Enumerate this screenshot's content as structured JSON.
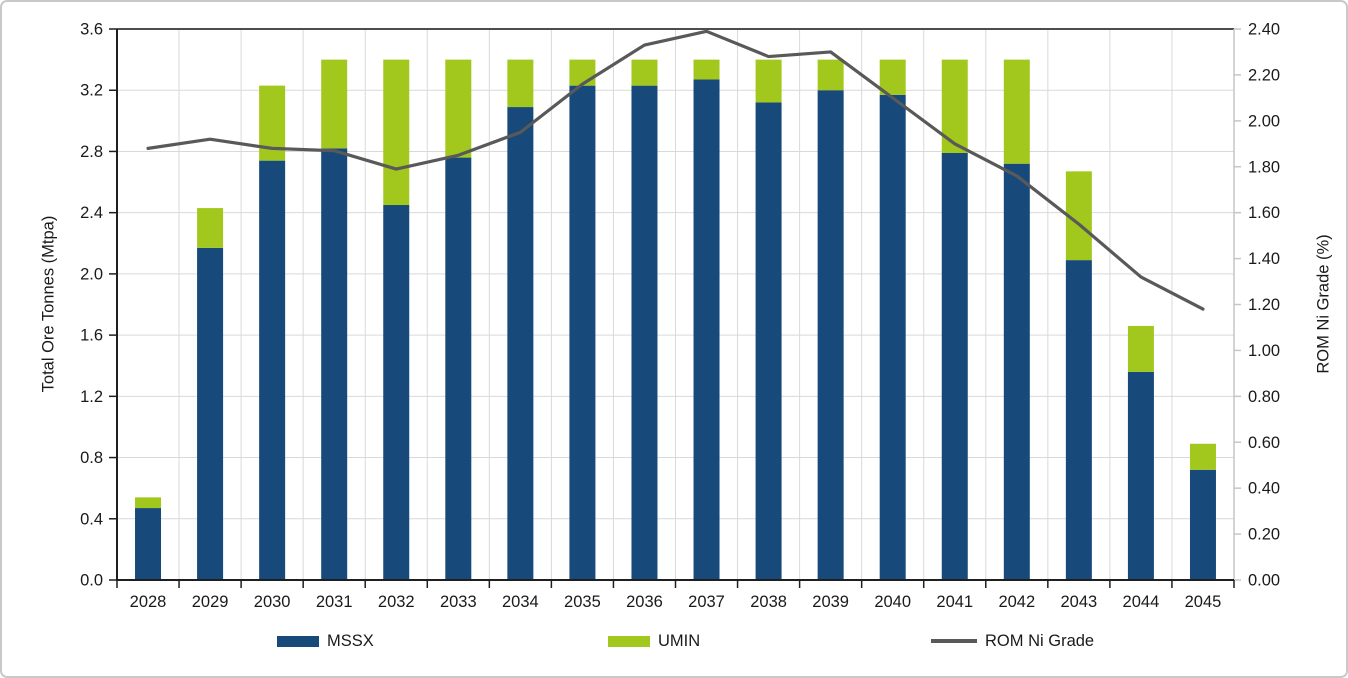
{
  "figure": {
    "background": "#FFFFFF",
    "border_color": "#C9C9C9"
  },
  "colors": {
    "mssx_blue": "#17497B",
    "umin_green": "#A2C81E",
    "line_gray": "#595959",
    "gridline": "#D9D9D9",
    "axis_dark": "#1F1F1F",
    "axis_light": "#C6C6C6",
    "plot_top_border": "#4D4D4D",
    "text": "#1A1A1A"
  },
  "chart_data": {
    "type": "combo-stacked-bar-line",
    "title": "",
    "categories": [
      "2028",
      "2029",
      "2030",
      "2031",
      "2032",
      "2033",
      "2034",
      "2035",
      "2036",
      "2037",
      "2038",
      "2039",
      "2040",
      "2041",
      "2042",
      "2043",
      "2044",
      "2045"
    ],
    "series": [
      {
        "name": "MSSX",
        "type": "bar",
        "stack": "ore",
        "axis": "left",
        "color": "#17497B",
        "values": [
          0.47,
          2.17,
          2.74,
          2.82,
          2.45,
          2.76,
          3.09,
          3.23,
          3.23,
          3.27,
          3.12,
          3.2,
          3.17,
          2.79,
          2.72,
          2.09,
          1.36,
          0.72
        ]
      },
      {
        "name": "UMIN",
        "type": "bar",
        "stack": "ore",
        "axis": "left",
        "color": "#A2C81E",
        "values": [
          0.07,
          0.26,
          0.49,
          0.58,
          0.95,
          0.64,
          0.31,
          0.17,
          0.17,
          0.13,
          0.28,
          0.2,
          0.23,
          0.61,
          0.68,
          0.58,
          0.3,
          0.17
        ]
      },
      {
        "name": "ROM Ni Grade",
        "type": "line",
        "axis": "right",
        "color": "#595959",
        "values": [
          1.88,
          1.92,
          1.88,
          1.87,
          1.79,
          1.85,
          1.95,
          2.16,
          2.33,
          2.39,
          2.28,
          2.3,
          2.1,
          1.9,
          1.76,
          1.55,
          1.32,
          1.18
        ]
      }
    ],
    "stacked_totals": [
      0.54,
      2.43,
      3.23,
      3.4,
      3.4,
      3.4,
      3.4,
      3.4,
      3.4,
      3.4,
      3.4,
      3.4,
      3.4,
      3.4,
      3.4,
      2.67,
      1.66,
      0.89
    ],
    "left_axis": {
      "label": "Total Ore Tonnes (Mtpa)",
      "min": 0.0,
      "max": 3.6,
      "step": 0.4,
      "decimals": 1
    },
    "right_axis": {
      "label": "ROM Ni Grade (%)",
      "min": 0.0,
      "max": 2.4,
      "step": 0.2,
      "decimals": 2
    },
    "grid": {
      "horizontal": true,
      "vertical": true
    },
    "legend_position": "bottom"
  }
}
